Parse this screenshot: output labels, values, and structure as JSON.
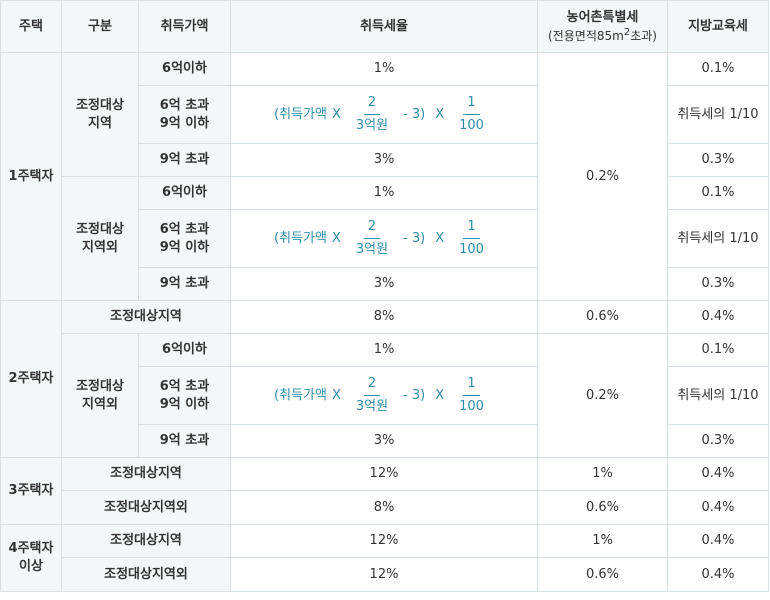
{
  "header": {
    "house": "주택",
    "division": "구분",
    "price": "취득가액",
    "rate": "취득세율",
    "rural_tax": "농어촌특별세",
    "rural_tax_note_prefix": "(전용면적85m",
    "rural_tax_note_sup": "2",
    "rural_tax_note_suffix": "초과)",
    "edu_tax": "지방교육세"
  },
  "formula": {
    "prefix": "(취득가액",
    "times1": "X",
    "frac1_num": "2",
    "frac1_den": "3억원",
    "minus": "- 3)",
    "times2": "X",
    "frac2_num": "1",
    "frac2_den": "100"
  },
  "one_house": {
    "label": "1주택자",
    "rural_tax": "0.2%",
    "adjusted": {
      "label": "조정대상\n지역",
      "rows": [
        {
          "price": "6억이하",
          "rate": "1%",
          "edu": "0.1%"
        },
        {
          "price": "6억 초과\n9억 이하",
          "edu": "취득세의 1/10"
        },
        {
          "price": "9억 초과",
          "rate": "3%",
          "edu": "0.3%"
        }
      ]
    },
    "non_adjusted": {
      "label": "조정대상\n지역외",
      "rows": [
        {
          "price": "6억이하",
          "rate": "1%",
          "edu": "0.1%"
        },
        {
          "price": "6억 초과\n9억 이하",
          "edu": "취득세의 1/10"
        },
        {
          "price": "9억 초과",
          "rate": "3%",
          "edu": "0.3%"
        }
      ]
    }
  },
  "two_house": {
    "label": "2주택자",
    "adjusted": {
      "label": "조정대상지역",
      "rate": "8%",
      "rural": "0.6%",
      "edu": "0.4%"
    },
    "non_adjusted": {
      "label": "조정대상\n지역외",
      "rural": "0.2%",
      "rows": [
        {
          "price": "6억이하",
          "rate": "1%",
          "edu": "0.1%"
        },
        {
          "price": "6억 초과\n9억 이하",
          "edu": "취득세의 1/10"
        },
        {
          "price": "9억 초과",
          "rate": "3%",
          "edu": "0.3%"
        }
      ]
    }
  },
  "three_house": {
    "label": "3주택자",
    "adjusted": {
      "label": "조정대상지역",
      "rate": "12%",
      "rural": "1%",
      "edu": "0.4%"
    },
    "non_adjusted": {
      "label": "조정대상지역외",
      "rate": "8%",
      "rural": "0.6%",
      "edu": "0.4%"
    }
  },
  "four_house": {
    "label": "4주택자\n이상",
    "adjusted": {
      "label": "조정대상지역",
      "rate": "12%",
      "rural": "1%",
      "edu": "0.4%"
    },
    "non_adjusted": {
      "label": "조정대상지역외",
      "rate": "12%",
      "rural": "0.6%",
      "edu": "0.4%"
    }
  }
}
